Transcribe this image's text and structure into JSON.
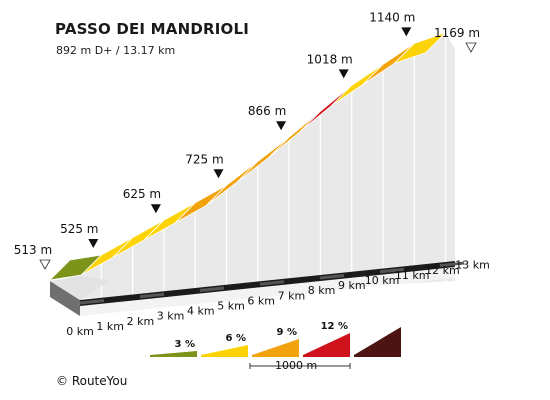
{
  "title": "PASSO DEI MANDRIOLI",
  "subtitle": "892 m D+ / 13.17 km",
  "credit": "© RouteYou",
  "chart_data": {
    "type": "area",
    "title": "PASSO DEI MANDRIOLI",
    "distance_unit": "km",
    "elevation_unit": "m",
    "xlim": [
      0,
      13
    ],
    "x_ticks": [
      0,
      1,
      2,
      3,
      4,
      5,
      6,
      7,
      8,
      9,
      10,
      11,
      12,
      13
    ],
    "x_tick_labels": [
      "0 km",
      "1 km",
      "2 km",
      "3 km",
      "4 km",
      "5 km",
      "6 km",
      "7 km",
      "8 km",
      "9 km",
      "10 km",
      "11 km",
      "12 km",
      "13 km"
    ],
    "profile": {
      "x": [
        0,
        1,
        2,
        3,
        4,
        5,
        6,
        7,
        8,
        9,
        10,
        11,
        12,
        13
      ],
      "y": [
        513,
        525,
        575,
        625,
        675,
        725,
        795,
        866,
        942,
        1018,
        1079,
        1140,
        1169,
        1169
      ]
    },
    "segments": [
      {
        "from_km": 0,
        "to_km": 1,
        "gradient_class": "3 %",
        "color": "#7d941a"
      },
      {
        "from_km": 1,
        "to_km": 2,
        "gradient_class": "6 %",
        "color": "#fcd306"
      },
      {
        "from_km": 2,
        "to_km": 3,
        "gradient_class": "6 %",
        "color": "#fcd306"
      },
      {
        "from_km": 3,
        "to_km": 4,
        "gradient_class": "6 %",
        "color": "#fcd306"
      },
      {
        "from_km": 4,
        "to_km": 5,
        "gradient_class": "9 %",
        "color": "#f2a20c"
      },
      {
        "from_km": 5,
        "to_km": 6,
        "gradient_class": "9 %",
        "color": "#f2a20c"
      },
      {
        "from_km": 6,
        "to_km": 7,
        "gradient_class": "9 %",
        "color": "#f2a20c"
      },
      {
        "from_km": 7,
        "to_km": 8,
        "gradient_class": "9 %",
        "color": "#f2a20c"
      },
      {
        "from_km": 8,
        "to_km": 9,
        "gradient_class": "12 %",
        "color": "#d0121d"
      },
      {
        "from_km": 9,
        "to_km": 10,
        "gradient_class": "6 %",
        "color": "#fcd306"
      },
      {
        "from_km": 10,
        "to_km": 11,
        "gradient_class": "9 %",
        "color": "#f2a20c"
      },
      {
        "from_km": 11,
        "to_km": 12,
        "gradient_class": "6 %",
        "color": "#fcd306"
      }
    ],
    "elevation_markers": [
      {
        "km": 0,
        "label": "513 m",
        "style": "open"
      },
      {
        "km": 1,
        "label": "525 m",
        "style": "filled"
      },
      {
        "km": 3,
        "label": "625 m",
        "style": "filled"
      },
      {
        "km": 5,
        "label": "725 m",
        "style": "filled"
      },
      {
        "km": 7,
        "label": "866 m",
        "style": "filled"
      },
      {
        "km": 9,
        "label": "1018 m",
        "style": "filled"
      },
      {
        "km": 11,
        "label": "1140 m",
        "style": "filled"
      },
      {
        "km": 12,
        "label": "1169 m",
        "style": "open"
      }
    ],
    "legend": {
      "items": [
        {
          "label": "3 %",
          "color": "#7d941a"
        },
        {
          "label": "6 %",
          "color": "#fcd306"
        },
        {
          "label": "9 %",
          "color": "#f2a20c"
        },
        {
          "label": "12 %",
          "color": "#d0121d"
        },
        {
          "label": "",
          "color": "#4d1414"
        }
      ],
      "scale_label": "1000 m"
    }
  }
}
